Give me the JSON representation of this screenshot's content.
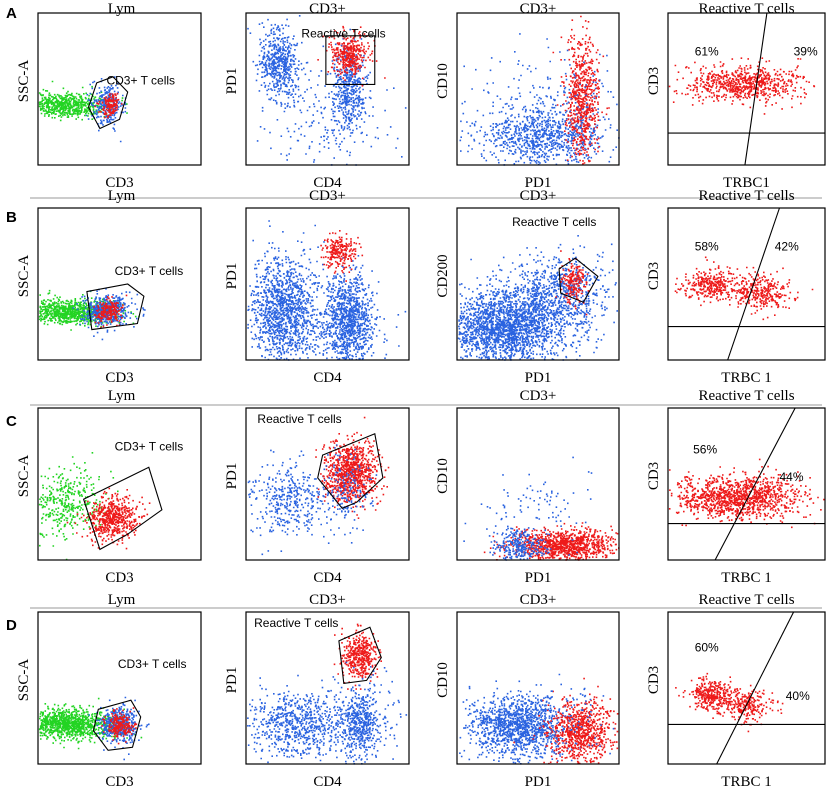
{
  "colors": {
    "blue": "#2a63e0",
    "red": "#ee1a1a",
    "green": "#22d422",
    "frame": "#000000",
    "divider": "#9a9a9a"
  },
  "chart_data": [
    {
      "row": "A",
      "panels": [
        {
          "type": "scatter",
          "title": "Lym",
          "xlabel": "CD3",
          "ylabel": "SSC-A",
          "gate_label": "CD3+ T cells",
          "quadrants": []
        },
        {
          "type": "scatter",
          "title": "CD3+",
          "xlabel": "CD4",
          "ylabel": "PD1",
          "gate_label": "Reactive T cells",
          "quadrants": []
        },
        {
          "type": "scatter",
          "title": "CD3+",
          "xlabel": "PD1",
          "ylabel": "CD10",
          "gate_label": "",
          "quadrants": []
        },
        {
          "type": "scatter",
          "title": "Reactive T cells",
          "xlabel": "TRBC1",
          "ylabel": "CD3",
          "gate_label": "",
          "quadrants": [
            {
              "label": "61%",
              "value": 61
            },
            {
              "label": "39%",
              "value": 39
            }
          ]
        }
      ]
    },
    {
      "row": "B",
      "panels": [
        {
          "type": "scatter",
          "title": "Lym",
          "xlabel": "CD3",
          "ylabel": "SSC-A",
          "gate_label": "CD3+ T cells",
          "quadrants": []
        },
        {
          "type": "scatter",
          "title": "CD3+",
          "xlabel": "CD4",
          "ylabel": "PD1",
          "gate_label": "",
          "quadrants": []
        },
        {
          "type": "scatter",
          "title": "CD3+",
          "xlabel": "PD1",
          "ylabel": "CD200",
          "gate_label": "Reactive T cells",
          "quadrants": []
        },
        {
          "type": "scatter",
          "title": "Reactive T cells",
          "xlabel": "TRBC 1",
          "ylabel": "CD3",
          "gate_label": "",
          "quadrants": [
            {
              "label": "58%",
              "value": 58
            },
            {
              "label": "42%",
              "value": 42
            }
          ]
        }
      ]
    },
    {
      "row": "C",
      "panels": [
        {
          "type": "scatter",
          "title": "Lym",
          "xlabel": "CD3",
          "ylabel": "SSC-A",
          "gate_label": "CD3+ T cells",
          "quadrants": []
        },
        {
          "type": "scatter",
          "title": "",
          "xlabel": "CD4",
          "ylabel": "PD1",
          "gate_label": "Reactive T cells",
          "quadrants": []
        },
        {
          "type": "scatter",
          "title": "CD3+",
          "xlabel": "PD1",
          "ylabel": "CD10",
          "gate_label": "",
          "quadrants": []
        },
        {
          "type": "scatter",
          "title": "Reactive T cells",
          "xlabel": "TRBC 1",
          "ylabel": "CD3",
          "gate_label": "",
          "quadrants": [
            {
              "label": "56%",
              "value": 56
            },
            {
              "label": "44%",
              "value": 44
            }
          ]
        }
      ]
    },
    {
      "row": "D",
      "panels": [
        {
          "type": "scatter",
          "title": "Lym",
          "xlabel": "CD3",
          "ylabel": "SSC-A",
          "gate_label": "CD3+ T cells",
          "quadrants": []
        },
        {
          "type": "scatter",
          "title": "CD3+",
          "xlabel": "CD4",
          "ylabel": "PD1",
          "gate_label": "Reactive T cells",
          "quadrants": []
        },
        {
          "type": "scatter",
          "title": "CD3+",
          "xlabel": "PD1",
          "ylabel": "CD10",
          "gate_label": "",
          "quadrants": []
        },
        {
          "type": "scatter",
          "title": "Reactive T cells",
          "xlabel": "TRBC 1",
          "ylabel": "CD3",
          "gate_label": "",
          "quadrants": [
            {
              "label": "60%",
              "value": 60
            },
            {
              "label": "40%",
              "value": 40
            }
          ]
        }
      ]
    }
  ]
}
